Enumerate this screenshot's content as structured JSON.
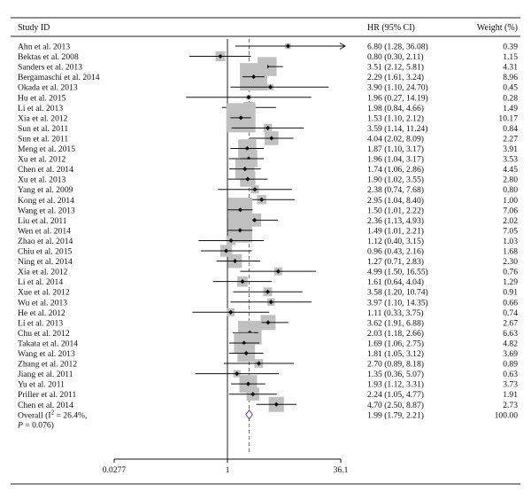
{
  "chart_data": {
    "type": "forest",
    "headers": {
      "study": "Study ID",
      "hr": "HR (95% CI)",
      "weight": "Weight (%)"
    },
    "x_scale": "log",
    "x_ticks": [
      "0.0277",
      "1",
      "36.1"
    ],
    "x_tick_values": [
      0.0277,
      1,
      36.1
    ],
    "reference_line": 1,
    "overall_line": 1.99,
    "studies": [
      {
        "label": "Ahn et al. 2013",
        "hr": 6.8,
        "lo": 1.28,
        "hi": 36.08,
        "hr_text": "6.80 (1.28, 36.08)",
        "weight": 0.39,
        "weight_text": "0.39",
        "arrow": true
      },
      {
        "label": "Bektas et al. 2008",
        "hr": 0.8,
        "lo": 0.3,
        "hi": 2.11,
        "hr_text": "0.80 (0.30, 2.11)",
        "weight": 1.15,
        "weight_text": "1.15"
      },
      {
        "label": "Sanders et al. 2013",
        "hr": 3.51,
        "lo": 2.12,
        "hi": 5.81,
        "hr_text": "3.51 (2.12, 5.81)",
        "weight": 4.31,
        "weight_text": "4.31"
      },
      {
        "label": "Bergamaschi et al. 2014",
        "hr": 2.29,
        "lo": 1.61,
        "hi": 3.24,
        "hr_text": "2.29 (1.61, 3.24)",
        "weight": 8.96,
        "weight_text": "8.96"
      },
      {
        "label": "Okada et al. 2013",
        "hr": 3.9,
        "lo": 1.1,
        "hi": 24.7,
        "hr_text": "3.90 (1.10, 24.70)",
        "weight": 0.45,
        "weight_text": "0.45"
      },
      {
        "label": "Hu et al. 2015",
        "hr": 1.96,
        "lo": 0.27,
        "hi": 14.19,
        "hr_text": "1.96 (0.27, 14.19)",
        "weight": 0.28,
        "weight_text": "0.28"
      },
      {
        "label": "Li et al. 2013",
        "hr": 1.98,
        "lo": 0.84,
        "hi": 4.66,
        "hr_text": "1.98 (0.84, 4.66)",
        "weight": 1.49,
        "weight_text": "1.49"
      },
      {
        "label": "Xia et al. 2012",
        "hr": 1.53,
        "lo": 1.1,
        "hi": 2.12,
        "hr_text": "1.53 (1.10, 2.12)",
        "weight": 10.17,
        "weight_text": "10.17"
      },
      {
        "label": "Sun et al. 2011",
        "hr": 3.59,
        "lo": 1.14,
        "hi": 11.24,
        "hr_text": "3.59 (1.14, 11.24)",
        "weight": 0.84,
        "weight_text": "0.84"
      },
      {
        "label": "Sun et al. 2011",
        "hr": 4.04,
        "lo": 2.02,
        "hi": 8.09,
        "hr_text": "4.04 (2.02, 8.09)",
        "weight": 2.27,
        "weight_text": "2.27"
      },
      {
        "label": "Meng et al. 2015",
        "hr": 1.87,
        "lo": 1.1,
        "hi": 3.17,
        "hr_text": "1.87 (1.10, 3.17)",
        "weight": 3.91,
        "weight_text": "3.91"
      },
      {
        "label": "Xu et al. 2012",
        "hr": 1.96,
        "lo": 1.04,
        "hi": 3.17,
        "hr_text": "1.96 (1.04, 3.17)",
        "weight": 3.53,
        "weight_text": "3.53"
      },
      {
        "label": "Chen et al. 2014",
        "hr": 1.74,
        "lo": 1.06,
        "hi": 2.86,
        "hr_text": "1.74 (1.06, 2.86)",
        "weight": 4.45,
        "weight_text": "4.45"
      },
      {
        "label": "Xu et al. 2013",
        "hr": 1.9,
        "lo": 1.02,
        "hi": 3.55,
        "hr_text": "1.90 (1.02, 3.55)",
        "weight": 2.8,
        "weight_text": "2.80"
      },
      {
        "label": "Yang et al. 2009",
        "hr": 2.38,
        "lo": 0.74,
        "hi": 7.68,
        "hr_text": "2.38 (0.74, 7.68)",
        "weight": 0.8,
        "weight_text": "0.80"
      },
      {
        "label": "Kong et al. 2014",
        "hr": 2.95,
        "lo": 1.04,
        "hi": 8.4,
        "hr_text": "2.95 (1.04, 8.40)",
        "weight": 1.0,
        "weight_text": "1.00"
      },
      {
        "label": "Wang et al. 2013",
        "hr": 1.5,
        "lo": 1.01,
        "hi": 2.22,
        "hr_text": "1.50 (1.01, 2.22)",
        "weight": 7.06,
        "weight_text": "7.06"
      },
      {
        "label": "Liu et al. 2011",
        "hr": 2.36,
        "lo": 1.13,
        "hi": 4.93,
        "hr_text": "2.36 (1.13, 4.93)",
        "weight": 2.02,
        "weight_text": "2.02"
      },
      {
        "label": "Wen et al. 2014",
        "hr": 1.49,
        "lo": 1.01,
        "hi": 2.21,
        "hr_text": "1.49 (1.01, 2.21)",
        "weight": 7.05,
        "weight_text": "7.05"
      },
      {
        "label": "Zhao et al. 2014",
        "hr": 1.12,
        "lo": 0.4,
        "hi": 3.15,
        "hr_text": "1.12 (0.40, 3.15)",
        "weight": 1.03,
        "weight_text": "1.03"
      },
      {
        "label": "Chiu et al. 2015",
        "hr": 0.96,
        "lo": 0.43,
        "hi": 2.16,
        "hr_text": "0.96 (0.43, 2.16)",
        "weight": 1.68,
        "weight_text": "1.68"
      },
      {
        "label": "Ning et al. 2014",
        "hr": 1.27,
        "lo": 0.71,
        "hi": 2.83,
        "hr_text": "1.27 (0.71, 2.83)",
        "weight": 2.3,
        "weight_text": "2.30"
      },
      {
        "label": "Xia et al. 2012",
        "hr": 4.99,
        "lo": 1.5,
        "hi": 16.55,
        "hr_text": "4.99 (1.50, 16.55)",
        "weight": 0.76,
        "weight_text": "0.76"
      },
      {
        "label": "Li et al. 2014",
        "hr": 1.61,
        "lo": 0.64,
        "hi": 4.04,
        "hr_text": "1.61 (0.64, 4.04)",
        "weight": 1.29,
        "weight_text": "1.29"
      },
      {
        "label": "Xue et al. 2012",
        "hr": 3.58,
        "lo": 1.2,
        "hi": 10.74,
        "hr_text": "3.58 (1.20, 10.74)",
        "weight": 0.91,
        "weight_text": "0.91"
      },
      {
        "label": "Wu et al. 2013",
        "hr": 3.97,
        "lo": 1.1,
        "hi": 14.35,
        "hr_text": "3.97 (1.10, 14.35)",
        "weight": 0.66,
        "weight_text": "0.66"
      },
      {
        "label": "He et al. 2012",
        "hr": 1.11,
        "lo": 0.33,
        "hi": 3.75,
        "hr_text": "1.11 (0.33, 3.75)",
        "weight": 0.74,
        "weight_text": "0.74"
      },
      {
        "label": "Li et al. 2013",
        "hr": 3.62,
        "lo": 1.91,
        "hi": 6.88,
        "hr_text": "3.62 (1.91, 6.88)",
        "weight": 2.67,
        "weight_text": "2.67"
      },
      {
        "label": "Chu et al. 2012",
        "hr": 2.03,
        "lo": 1.18,
        "hi": 2.66,
        "hr_text": "2.03 (1.18, 2.66)",
        "weight": 6.63,
        "weight_text": "6.63"
      },
      {
        "label": "Takata et al. 2014",
        "hr": 1.69,
        "lo": 1.06,
        "hi": 2.75,
        "hr_text": "1.69 (1.06, 2.75)",
        "weight": 4.82,
        "weight_text": "4.82"
      },
      {
        "label": "Wang et al. 2013",
        "hr": 1.81,
        "lo": 1.05,
        "hi": 3.12,
        "hr_text": "1.81 (1.05, 3.12)",
        "weight": 3.69,
        "weight_text": "3.69"
      },
      {
        "label": "Zhang et al. 2012",
        "hr": 2.7,
        "lo": 0.89,
        "hi": 8.18,
        "hr_text": "2.70 (0.89, 8.18)",
        "weight": 0.89,
        "weight_text": "0.89"
      },
      {
        "label": "Jiang et al. 2011",
        "hr": 1.35,
        "lo": 0.36,
        "hi": 5.07,
        "hr_text": "1.35 (0.36, 5.07)",
        "weight": 0.63,
        "weight_text": "0.63"
      },
      {
        "label": "Yu et al. 2011",
        "hr": 1.93,
        "lo": 1.12,
        "hi": 3.31,
        "hr_text": "1.93 (1.12, 3.31)",
        "weight": 3.73,
        "weight_text": "3.73"
      },
      {
        "label": "Priller et al. 2011",
        "hr": 2.24,
        "lo": 1.05,
        "hi": 4.77,
        "hr_text": "2.24 (1.05, 4.77)",
        "weight": 1.91,
        "weight_text": "1.91"
      },
      {
        "label": "Chen et al. 2014",
        "hr": 4.7,
        "lo": 2.5,
        "hi": 8.87,
        "hr_text": "4.70 (2.50, 8.87)",
        "weight": 2.73,
        "weight_text": "2.73"
      }
    ],
    "overall": {
      "label_line1": "Overall (I",
      "label_sup": "2",
      "label_line1_rest": " = 26.4%,",
      "label_line2_p": "P",
      "label_line2_rest": " = 0.076)",
      "hr": 1.99,
      "lo": 1.79,
      "hi": 2.21,
      "hr_text": "1.99 (1.79, 2.21)",
      "weight_text": "100.00"
    },
    "colors": {
      "box": "#c0c0c0",
      "text": "#111111",
      "ref_line": "#222222",
      "overall_line": "#c04b6b",
      "diamond": "#6a3d9a"
    }
  }
}
